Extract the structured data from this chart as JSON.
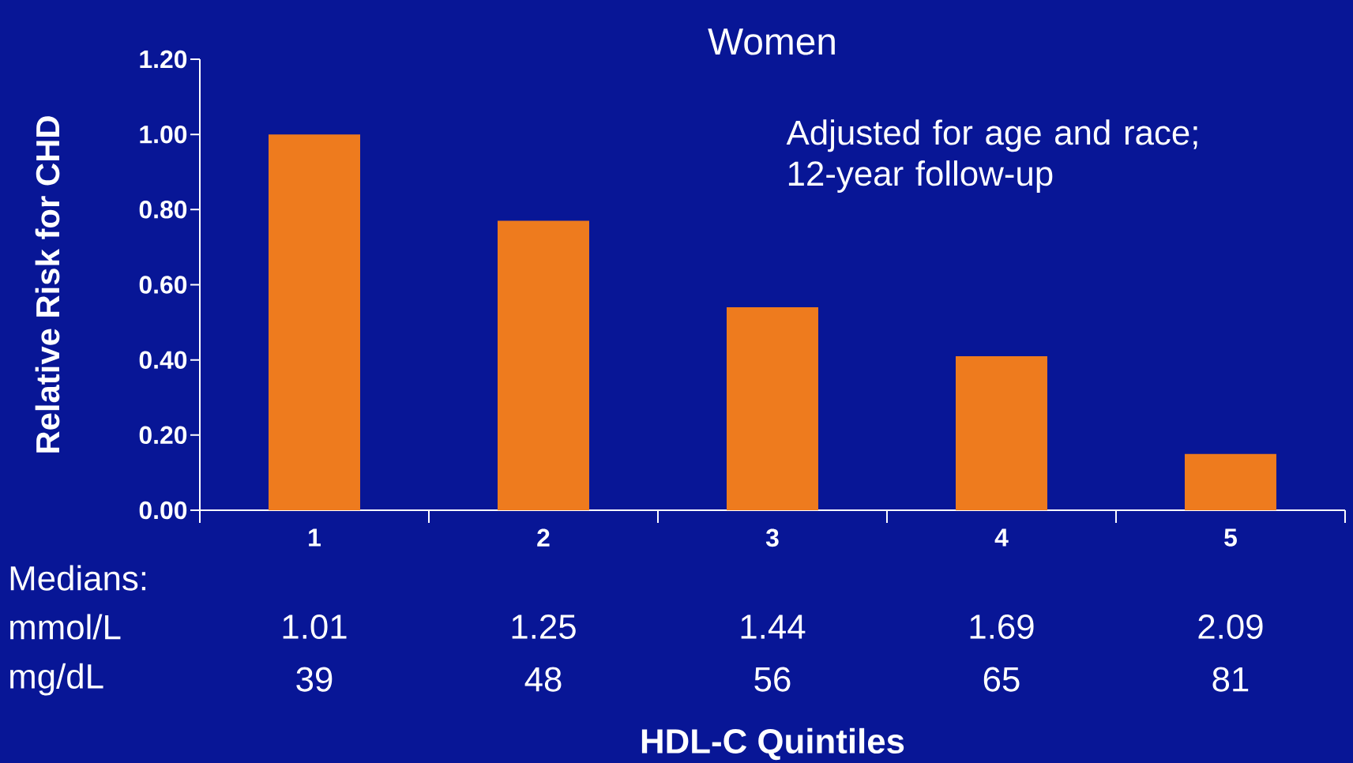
{
  "chart_data": {
    "type": "bar",
    "title": "Women",
    "ylabel": "Relative Risk for CHD",
    "categories": [
      "1",
      "2",
      "3",
      "4",
      "5"
    ],
    "values": [
      1.0,
      0.77,
      0.54,
      0.41,
      0.15
    ],
    "color": "#ee7b1e",
    "ylim": [
      0,
      1.2
    ],
    "yticks": [
      {
        "value": 0,
        "label": "0.00"
      },
      {
        "value": 0.2,
        "label": "0.20"
      },
      {
        "value": 0.4,
        "label": "0.40"
      },
      {
        "value": 0.6,
        "label": "0.60"
      },
      {
        "value": 0.8,
        "label": "0.80"
      },
      {
        "value": 1.0,
        "label": "1.00"
      },
      {
        "value": 1.2,
        "label": "1.20"
      }
    ],
    "annotations": [
      "Adjusted for age and race; 12-year follow-up",
      "Medians:",
      "mmol/L",
      "1.01",
      "1.25",
      "1.44",
      "1.69",
      "2.09",
      "mg/dL",
      "39",
      "48",
      "56",
      "65",
      "81",
      "HDL-C Quintiles"
    ]
  }
}
